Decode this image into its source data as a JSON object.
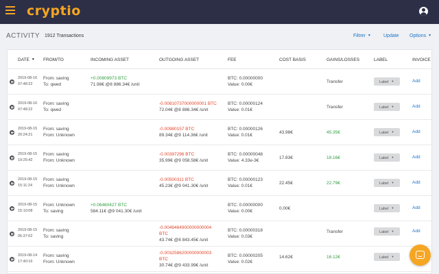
{
  "app": {
    "logo": "cryptio"
  },
  "header": {
    "title": "ACTIVITY",
    "tx_count": "1912 Transactions",
    "filter_label": "Filtrer",
    "update_label": "Update",
    "options_label": "Options"
  },
  "table": {
    "columns": [
      "DATE",
      "FROM/TO",
      "INCOMING ASSET",
      "OUTGOING ASSET",
      "FEE",
      "COST BASIS",
      "GAINS/LOSSES",
      "LABEL",
      "INVOICE"
    ],
    "label_btn": "Label",
    "add_link": "Add",
    "rows": [
      {
        "date1": "2019-08-16",
        "date2": "07:48:22",
        "from": "From: saving",
        "to": "To: qwed",
        "in1": "+0.00809973 BTC",
        "in2": "71.98€ @8 886.34€ /unit",
        "out1": "",
        "out2": "",
        "out3": "",
        "fee1": "BTC: 0.00000000",
        "fee2": "Value: 0.00€",
        "cost": "",
        "gains": "Transfer"
      },
      {
        "date1": "2019-08-16",
        "date2": "07:48:22",
        "from": "From: saving",
        "to": "To: qwed",
        "in1": "",
        "in2": "",
        "out1": "-0.00810737000000001 BTC",
        "out2": "72.04€ @8 886.34€ /unit",
        "out3": "",
        "fee1": "BTC: 0.00000124",
        "fee2": "Value: 0.01€",
        "cost": "",
        "gains": "Transfer"
      },
      {
        "date1": "2019-08-15",
        "date2": "20:24:21",
        "from": "From: saving",
        "to": "From: Unknown",
        "in1": "",
        "in2": "",
        "out1": "-0.00980157 BTC",
        "out2": "89.34€ @9 114.36€ /unit",
        "out3": "",
        "fee1": "BTC: 0.00000126",
        "fee2": "Value: 0.01€",
        "cost": "43.98€",
        "gains": "45.35€"
      },
      {
        "date1": "2019-08-15",
        "date2": "19:25:42",
        "from": "From: saving",
        "to": "From: Unknown",
        "in1": "",
        "in2": "",
        "out1": "-0.00397296 BTC",
        "out2": "35.99€ @9 058.58€ /unit",
        "out3": "",
        "fee1": "BTC: 0.00000048",
        "fee2": "Value: 4.33e-3€",
        "cost": "17.83€",
        "gains": "18.16€"
      },
      {
        "date1": "2019-08-15",
        "date2": "15:11:24",
        "from": "From: saving",
        "to": "From: Unknown",
        "in1": "",
        "in2": "",
        "out1": "-0.00500311 BTC",
        "out2": "45.23€ @9 041.30€ /unit",
        "out3": "",
        "fee1": "BTC: 0.00000123",
        "fee2": "Value: 0.01€",
        "cost": "22.45€",
        "gains": "22.79€"
      },
      {
        "date1": "2019-08-15",
        "date2": "15:10:08",
        "from": "From: Unknown",
        "to": "To: saving",
        "in1": "+0.06460427 BTC",
        "in2": "584.11€ @9 041.30€ /unit",
        "out1": "",
        "out2": "",
        "out3": "",
        "fee1": "BTC: 0.00000000",
        "fee2": "Value: 0.00€",
        "cost": "0.00€",
        "gains": ""
      },
      {
        "date1": "2019-08-15",
        "date2": "05:37:02",
        "from": "From: saving",
        "to": "To: saving",
        "in1": "",
        "in2": "",
        "out1": "-0.0049464900000000004",
        "out2": "BTC",
        "out3": "43.74€ @8 843.45€ /unit",
        "fee1": "BTC: 0.00000318",
        "fee2": "Value: 0.03€",
        "cost": "",
        "gains": "Transfer"
      },
      {
        "date1": "2019-08-14",
        "date2": "17:40:16",
        "from": "From: saving",
        "to": "From: Unknown",
        "in1": "",
        "in2": "",
        "out1": "-0.0032586200000000003",
        "out2": "BTC",
        "out3": "30.74€ @9 433.99€ /unit",
        "fee1": "BTC: 0.00000205",
        "fee2": "Value: 0.02€",
        "cost": "14.62€",
        "gains": "16.12€"
      }
    ]
  },
  "colors": {
    "topbar": "#2d2f47",
    "brand": "#f5a623",
    "link": "#1a73c8",
    "gain": "#2e9e3e",
    "loss": "#e0452b"
  },
  "icons": {
    "menu": "hamburger-menu-icon",
    "user": "user-account-icon",
    "row": "expand-plus-icon",
    "chat": "chat-bubble-icon"
  }
}
